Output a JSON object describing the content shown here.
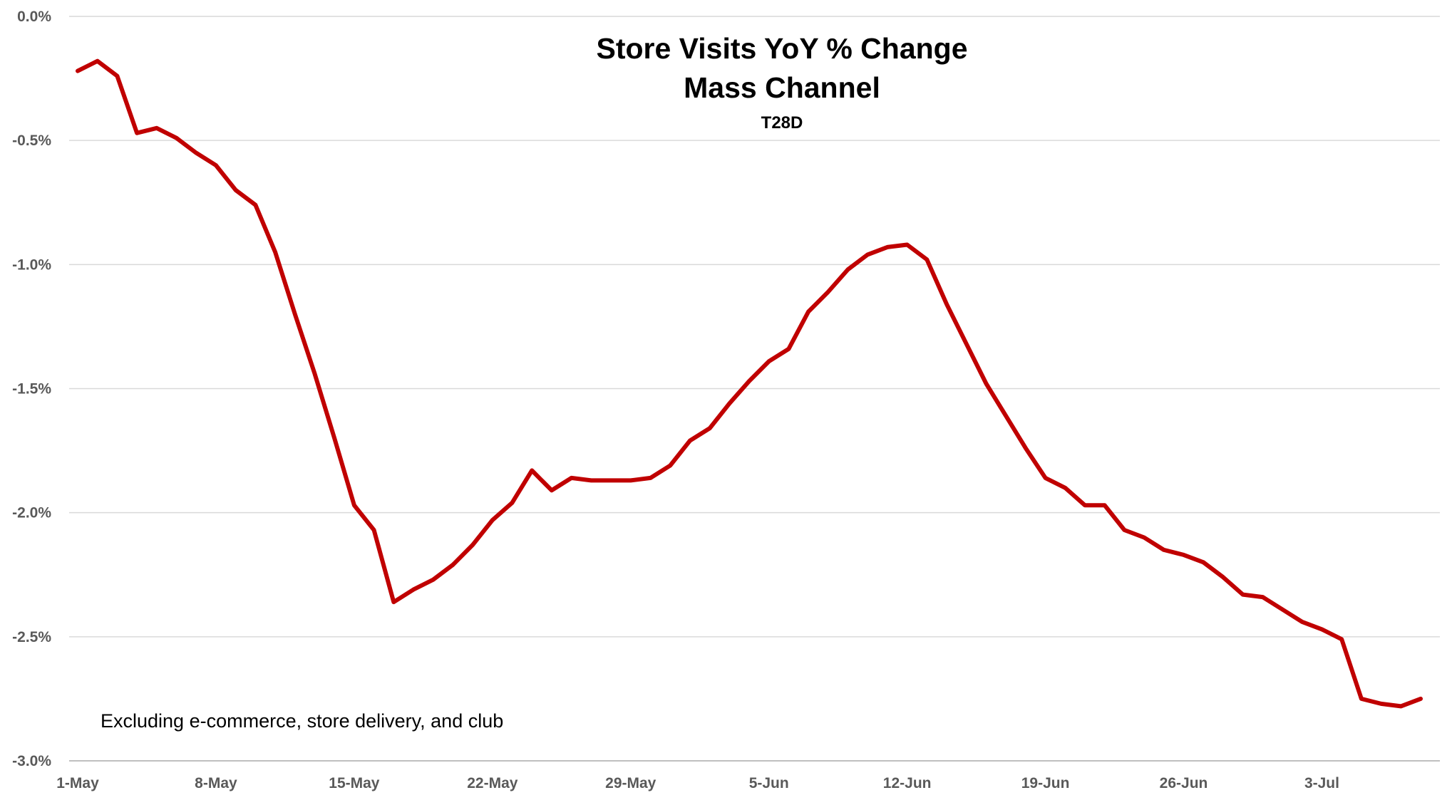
{
  "chart_data": {
    "type": "line",
    "title": "Store Visits YoY % Change",
    "subtitle": "Mass Channel",
    "subtitle2": "T28D",
    "annotation": "Excluding e-commerce, store delivery, and club",
    "xlabel": "",
    "ylabel": "",
    "ylim": [
      -3.0,
      0.0
    ],
    "y_ticks": [
      0.0,
      -0.5,
      -1.0,
      -1.5,
      -2.0,
      -2.5,
      -3.0
    ],
    "y_tick_labels": [
      "0.0%",
      "-0.5%",
      "-1.0%",
      "-1.5%",
      "-2.0%",
      "-2.5%",
      "-3.0%"
    ],
    "x_tick_labels": [
      "1-May",
      "8-May",
      "15-May",
      "22-May",
      "29-May",
      "5-Jun",
      "12-Jun",
      "19-Jun",
      "26-Jun",
      "3-Jul"
    ],
    "grid": true,
    "series_color": "#C00000",
    "grid_color": "#D9D9D9",
    "series": [
      {
        "name": "",
        "x": [
          "1-May",
          "2-May",
          "3-May",
          "4-May",
          "5-May",
          "6-May",
          "7-May",
          "8-May",
          "9-May",
          "10-May",
          "11-May",
          "12-May",
          "13-May",
          "14-May",
          "15-May",
          "16-May",
          "17-May",
          "18-May",
          "19-May",
          "20-May",
          "21-May",
          "22-May",
          "23-May",
          "24-May",
          "25-May",
          "26-May",
          "27-May",
          "28-May",
          "29-May",
          "30-May",
          "31-May",
          "1-Jun",
          "2-Jun",
          "3-Jun",
          "4-Jun",
          "5-Jun",
          "6-Jun",
          "7-Jun",
          "8-Jun",
          "9-Jun",
          "10-Jun",
          "11-Jun",
          "12-Jun",
          "13-Jun",
          "14-Jun",
          "15-Jun",
          "16-Jun",
          "17-Jun",
          "18-Jun",
          "19-Jun",
          "20-Jun",
          "21-Jun",
          "22-Jun",
          "23-Jun",
          "24-Jun",
          "25-Jun",
          "26-Jun",
          "27-Jun",
          "28-Jun",
          "29-Jun",
          "30-Jun",
          "1-Jul",
          "2-Jul",
          "3-Jul",
          "4-Jul",
          "5-Jul",
          "6-Jul",
          "7-Jul",
          "8-Jul"
        ],
        "values": [
          -0.22,
          -0.18,
          -0.24,
          -0.47,
          -0.45,
          -0.49,
          -0.55,
          -0.6,
          -0.7,
          -0.76,
          -0.95,
          -1.2,
          -1.44,
          -1.7,
          -1.97,
          -2.07,
          -2.36,
          -2.31,
          -2.27,
          -2.21,
          -2.13,
          -2.03,
          -1.96,
          -1.83,
          -1.91,
          -1.86,
          -1.87,
          -1.87,
          -1.87,
          -1.86,
          -1.81,
          -1.71,
          -1.66,
          -1.56,
          -1.47,
          -1.39,
          -1.34,
          -1.19,
          -1.11,
          -1.02,
          -0.96,
          -0.93,
          -0.92,
          -0.98,
          -1.16,
          -1.32,
          -1.48,
          -1.61,
          -1.74,
          -1.86,
          -1.9,
          -1.97,
          -1.97,
          -2.07,
          -2.1,
          -2.15,
          -2.17,
          -2.2,
          -2.26,
          -2.33,
          -2.34,
          -2.39,
          -2.44,
          -2.47,
          -2.51,
          -2.75,
          -2.77,
          -2.78,
          -2.75
        ]
      }
    ]
  }
}
